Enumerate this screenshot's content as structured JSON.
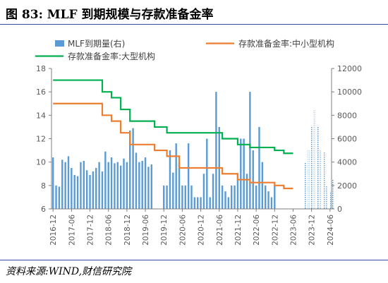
{
  "figure": {
    "title": "图 83:  MLF 到期规模与存款准备金率",
    "source": "资料来源:WIND,财信研究院"
  },
  "colors": {
    "bar": "#5b9bd5",
    "rrr_small": "#ed7d31",
    "rrr_large": "#00b050",
    "axis_text": "#595959",
    "title_rule": "#2f4a9e"
  },
  "chart_data": {
    "type": "bar",
    "title": "",
    "legend": [
      "MLF到期量(右)",
      "存款准备金率:中小型机构",
      "存款准备金率:大型机构"
    ],
    "legend_position": "top",
    "grid": false,
    "xlabel": "",
    "ylabel": "",
    "y_left": {
      "ticks": [
        "18",
        "16",
        "14",
        "12",
        "10",
        "8",
        "6"
      ],
      "lim": [
        6,
        18
      ]
    },
    "y_right": {
      "ticks": [
        "12000",
        "10000",
        "8000",
        "6000",
        "4000",
        "2000",
        "0"
      ],
      "lim": [
        0,
        12000
      ]
    },
    "x_ticks": [
      "2016-12",
      "2017-06",
      "2017-12",
      "2018-06",
      "2018-12",
      "2019-06",
      "2019-12",
      "2020-06",
      "2020-12",
      "2021-06",
      "2021-12",
      "2022-06",
      "2022-12",
      "2023-06",
      "2023-12",
      "2024-06"
    ],
    "x_start": "2016-12",
    "series": [
      {
        "name": "MLF到期量(右)",
        "kind": "bar",
        "start": "2016-12",
        "values": [
          4400,
          2000,
          1900,
          4200,
          4000,
          4500,
          3500,
          2900,
          2800,
          4000,
          4100,
          3300,
          2900,
          3200,
          3500,
          4000,
          3200,
          4900,
          4000,
          4400,
          3900,
          4000,
          3700,
          4300,
          4000,
          6700,
          6900,
          4800,
          4000,
          4100,
          4400,
          3600,
          3800,
          0,
          0,
          0,
          2000,
          2000,
          5000,
          3100,
          5600,
          3900,
          2000,
          2000,
          5600,
          2000,
          1000,
          1000,
          1000,
          3000,
          6000,
          1000,
          3000,
          10000,
          7000,
          2000,
          1500,
          1000,
          2000,
          2000,
          3000,
          6000,
          6000,
          3000,
          10000,
          5000,
          2000,
          7000,
          4000,
          2000,
          1500,
          1000,
          2000
        ],
        "projected_start": "2023-10",
        "projected_values": [
          4000,
          5000,
          7000,
          8500,
          7000,
          5000,
          4900,
          2000,
          1500,
          2500
        ]
      },
      {
        "name": "存款准备金率:中小型机构",
        "kind": "step",
        "points": [
          [
            "2016-12",
            15.0
          ],
          [
            "2018-04",
            14.0
          ],
          [
            "2018-07",
            13.5
          ],
          [
            "2018-10",
            12.5
          ],
          [
            "2019-01",
            11.5
          ],
          [
            "2019-05",
            11.5
          ],
          [
            "2019-09",
            11.0
          ],
          [
            "2020-01",
            10.5
          ],
          [
            "2020-05",
            9.5
          ],
          [
            "2021-07",
            9.0
          ],
          [
            "2021-12",
            8.5
          ],
          [
            "2022-04",
            8.25
          ],
          [
            "2022-12",
            8.0
          ],
          [
            "2023-03",
            7.75
          ],
          [
            "2023-06",
            7.75
          ]
        ]
      },
      {
        "name": "存款准备金率:大型机构",
        "kind": "step",
        "points": [
          [
            "2016-12",
            17.0
          ],
          [
            "2018-04",
            16.0
          ],
          [
            "2018-07",
            15.5
          ],
          [
            "2018-10",
            14.5
          ],
          [
            "2019-01",
            13.5
          ],
          [
            "2019-09",
            13.0
          ],
          [
            "2020-01",
            12.5
          ],
          [
            "2021-07",
            12.0
          ],
          [
            "2021-12",
            11.5
          ],
          [
            "2022-04",
            11.25
          ],
          [
            "2022-12",
            11.0
          ],
          [
            "2023-03",
            10.75
          ],
          [
            "2023-06",
            10.75
          ]
        ]
      }
    ]
  }
}
